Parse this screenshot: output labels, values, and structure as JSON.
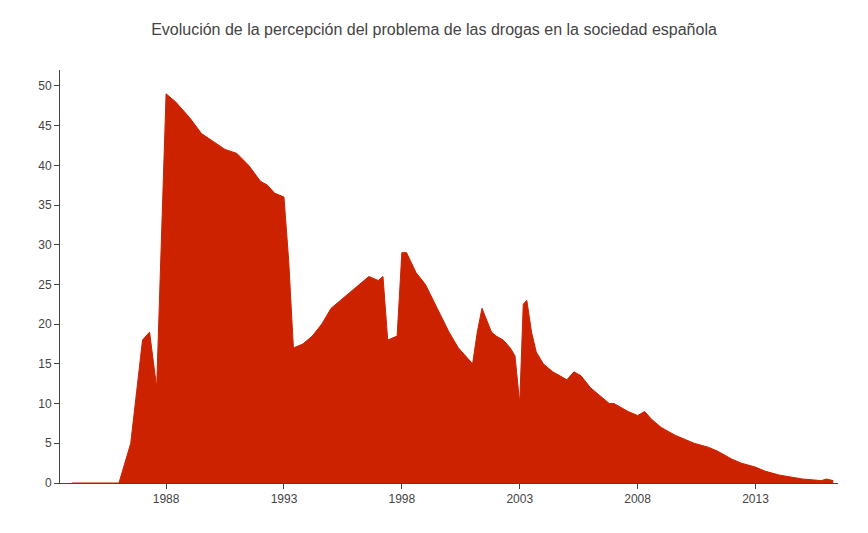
{
  "chart_data": {
    "type": "area",
    "title": "Evolución de la percepción del problema de las drogas en la sociedad española",
    "color": "#cc2200",
    "x": [
      1984.0,
      1985.0,
      1986.0,
      1986.5,
      1987.0,
      1987.3,
      1987.6,
      1988.0,
      1988.4,
      1989.0,
      1989.5,
      1990.0,
      1990.5,
      1991.0,
      1991.5,
      1992.0,
      1992.3,
      1992.6,
      1993.0,
      1993.2,
      1993.4,
      1993.8,
      1994.2,
      1994.6,
      1995.0,
      1995.4,
      1995.8,
      1996.2,
      1996.6,
      1997.0,
      1997.2,
      1997.4,
      1997.8,
      1998.0,
      1998.2,
      1998.6,
      1999.0,
      1999.5,
      2000.0,
      2000.4,
      2001.0,
      2001.2,
      2001.4,
      2001.8,
      2002.0,
      2002.3,
      2002.6,
      2002.8,
      2003.0,
      2003.15,
      2003.3,
      2003.5,
      2003.7,
      2004.0,
      2004.4,
      2005.0,
      2005.3,
      2005.6,
      2006.0,
      2006.4,
      2006.8,
      2007.0,
      2007.3,
      2007.6,
      2008.0,
      2008.3,
      2008.6,
      2009.0,
      2009.3,
      2009.6,
      2010.0,
      2010.4,
      2011.0,
      2011.4,
      2012.0,
      2012.4,
      2013.0,
      2013.4,
      2014.0,
      2014.4,
      2015.0,
      2015.4,
      2015.8,
      2016.0,
      2016.3
    ],
    "values": [
      0.0,
      0.0,
      0.0,
      5.0,
      18.0,
      19.0,
      12.0,
      49.0,
      48.0,
      46.0,
      44.0,
      43.0,
      42.0,
      41.5,
      40.0,
      38.0,
      37.5,
      36.5,
      36.0,
      28.0,
      17.0,
      17.5,
      18.5,
      20.0,
      22.0,
      23.0,
      24.0,
      25.0,
      26.0,
      25.5,
      26.0,
      18.0,
      18.5,
      29.0,
      29.0,
      26.5,
      25.0,
      22.0,
      19.0,
      17.0,
      15.0,
      19.0,
      22.0,
      19.0,
      18.5,
      18.0,
      17.0,
      16.0,
      10.0,
      22.5,
      23.0,
      19.0,
      16.5,
      15.0,
      14.0,
      13.0,
      14.0,
      13.5,
      12.0,
      11.0,
      10.0,
      10.0,
      9.5,
      9.0,
      8.5,
      9.0,
      8.0,
      7.0,
      6.5,
      6.0,
      5.5,
      5.0,
      4.5,
      4.0,
      3.0,
      2.5,
      2.0,
      1.5,
      1.0,
      0.8,
      0.5,
      0.4,
      0.3,
      0.5,
      0.3
    ],
    "xlim": [
      1983.5,
      2016.5
    ],
    "ylim": [
      0,
      52
    ],
    "xticks": [
      1988,
      1993,
      1998,
      2003,
      2008,
      2013
    ],
    "yticks": [
      0,
      5,
      10,
      15,
      20,
      25,
      30,
      35,
      40,
      45,
      50
    ],
    "grid": false
  }
}
